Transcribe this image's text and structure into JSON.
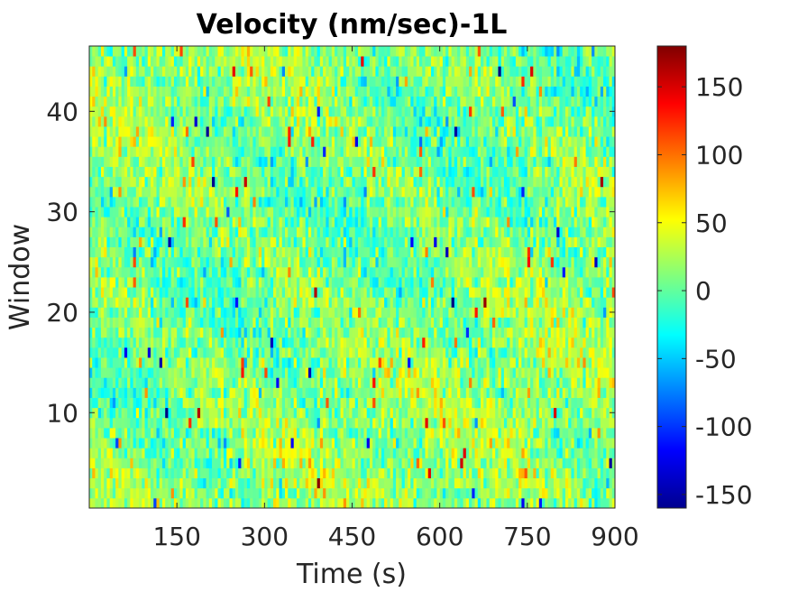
{
  "chart_data": {
    "type": "heatmap",
    "title": "Velocity (nm/sec)-1L",
    "xlabel": "Time (s)",
    "ylabel": "Window",
    "xlim": [
      0,
      900
    ],
    "ylim": [
      0.5,
      46.5
    ],
    "x_ticks": [
      150,
      300,
      450,
      600,
      750,
      900
    ],
    "y_ticks": [
      10,
      20,
      30,
      40
    ],
    "x_tick_labels": [
      "150",
      "300",
      "450",
      "600",
      "750",
      "900"
    ],
    "y_tick_labels": [
      "10",
      "20",
      "30",
      "40"
    ],
    "colormap": "jet",
    "color_range": [
      -160,
      180
    ],
    "colorbar": {
      "ticks": [
        150,
        100,
        50,
        0,
        -50,
        -100,
        -150
      ],
      "tick_labels": [
        "150",
        "100",
        "50",
        "0",
        "-50",
        "-100",
        "-150"
      ]
    },
    "grid": false,
    "value_unit": "nm/sec",
    "windows": 46,
    "time_bins": 180,
    "description_of_values": "noisy velocity field mostly between -40 and 60 nm/sec with sparse extremes up to about 150 and down to about -150"
  }
}
